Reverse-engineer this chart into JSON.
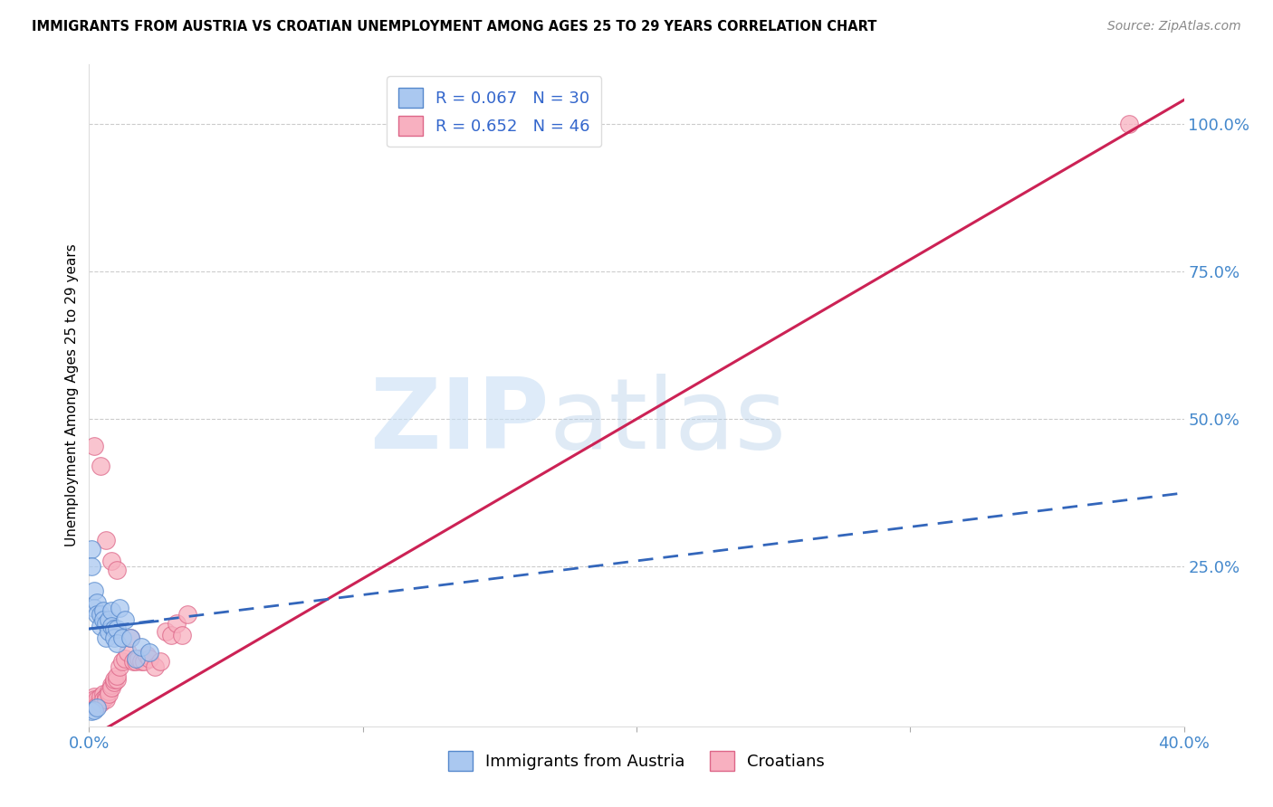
{
  "title": "IMMIGRANTS FROM AUSTRIA VS CROATIAN UNEMPLOYMENT AMONG AGES 25 TO 29 YEARS CORRELATION CHART",
  "source": "Source: ZipAtlas.com",
  "ylabel": "Unemployment Among Ages 25 to 29 years",
  "xlim": [
    0.0,
    0.4
  ],
  "ylim": [
    -0.02,
    1.1
  ],
  "blue_color": "#aac8f0",
  "blue_edge": "#5588cc",
  "pink_color": "#f8b0c0",
  "pink_edge": "#dd6688",
  "blue_line_color": "#3366bb",
  "pink_line_color": "#cc2255",
  "legend_blue_R": "R = 0.067",
  "legend_blue_N": "N = 30",
  "legend_pink_R": "R = 0.652",
  "legend_pink_N": "N = 46",
  "legend_label_blue": "Immigrants from Austria",
  "legend_label_pink": "Croatians",
  "blue_scatter_x": [
    0.001,
    0.001,
    0.002,
    0.002,
    0.003,
    0.003,
    0.004,
    0.004,
    0.005,
    0.005,
    0.006,
    0.006,
    0.007,
    0.007,
    0.008,
    0.008,
    0.009,
    0.009,
    0.01,
    0.01,
    0.011,
    0.012,
    0.013,
    0.015,
    0.017,
    0.019,
    0.022,
    0.001,
    0.002,
    0.003
  ],
  "blue_scatter_y": [
    0.28,
    0.25,
    0.21,
    0.18,
    0.19,
    0.17,
    0.17,
    0.15,
    0.175,
    0.16,
    0.155,
    0.13,
    0.16,
    0.14,
    0.175,
    0.15,
    0.145,
    0.13,
    0.145,
    0.12,
    0.18,
    0.13,
    0.16,
    0.13,
    0.095,
    0.115,
    0.105,
    0.005,
    0.008,
    0.012
  ],
  "pink_scatter_x": [
    0.001,
    0.001,
    0.002,
    0.002,
    0.003,
    0.003,
    0.003,
    0.004,
    0.004,
    0.005,
    0.005,
    0.006,
    0.006,
    0.007,
    0.007,
    0.008,
    0.008,
    0.009,
    0.009,
    0.01,
    0.01,
    0.011,
    0.012,
    0.013,
    0.014,
    0.015,
    0.016,
    0.017,
    0.018,
    0.019,
    0.02,
    0.021,
    0.022,
    0.024,
    0.026,
    0.028,
    0.03,
    0.032,
    0.034,
    0.036,
    0.002,
    0.004,
    0.006,
    0.008,
    0.01,
    0.38
  ],
  "pink_scatter_y": [
    0.02,
    0.015,
    0.03,
    0.025,
    0.02,
    0.025,
    0.015,
    0.02,
    0.03,
    0.035,
    0.025,
    0.03,
    0.025,
    0.04,
    0.035,
    0.05,
    0.045,
    0.055,
    0.06,
    0.06,
    0.065,
    0.08,
    0.09,
    0.095,
    0.105,
    0.13,
    0.09,
    0.09,
    0.095,
    0.09,
    0.09,
    0.1,
    0.095,
    0.08,
    0.09,
    0.14,
    0.135,
    0.155,
    0.135,
    0.17,
    0.455,
    0.42,
    0.295,
    0.26,
    0.245,
    1.0
  ],
  "pink_line_fixed": [
    [
      0.0,
      -0.04
    ],
    [
      0.4,
      1.04
    ]
  ],
  "blue_line_fixed": [
    [
      0.0,
      0.145
    ],
    [
      0.4,
      0.375
    ]
  ]
}
